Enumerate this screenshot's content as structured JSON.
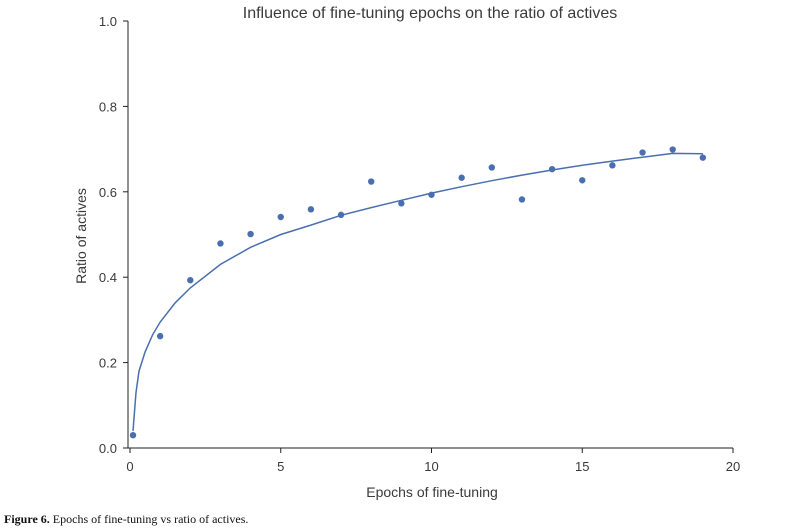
{
  "chart_data": {
    "type": "scatter",
    "title": "Influence of fine-tuning epochs on the ratio of actives",
    "xlabel": "Epochs of fine-tuning",
    "ylabel": "Ratio of actives",
    "xlim": [
      0,
      20
    ],
    "ylim": [
      0.0,
      1.0
    ],
    "xticks": [
      0,
      5,
      10,
      15,
      20
    ],
    "yticks": [
      0.0,
      0.2,
      0.4,
      0.6,
      0.8,
      1.0
    ],
    "xtick_labels": [
      "0",
      "5",
      "10",
      "15",
      "20"
    ],
    "ytick_labels": [
      "0.0",
      "0.2",
      "0.4",
      "0.6",
      "0.8",
      "1.0"
    ],
    "grid": false,
    "series": [
      {
        "type": "scatter",
        "x": [
          0.1,
          1,
          2,
          3,
          4,
          5,
          6,
          7,
          8,
          9,
          10,
          11,
          12,
          13,
          14,
          15,
          16,
          17,
          18,
          19
        ],
        "y": [
          0.03,
          0.262,
          0.393,
          0.479,
          0.501,
          0.541,
          0.559,
          0.546,
          0.624,
          0.573,
          0.593,
          0.633,
          0.657,
          0.582,
          0.653,
          0.627,
          0.662,
          0.692,
          0.699,
          0.68
        ]
      },
      {
        "type": "line",
        "x": [
          0.1,
          0.2,
          0.3,
          0.5,
          0.75,
          1,
          1.5,
          2,
          3,
          4,
          5,
          6,
          7,
          8,
          9,
          10,
          11,
          12,
          13,
          14,
          15,
          16,
          17,
          18,
          19
        ],
        "y": [
          0.04,
          0.13,
          0.18,
          0.225,
          0.265,
          0.295,
          0.34,
          0.375,
          0.43,
          0.47,
          0.5,
          0.522,
          0.545,
          0.563,
          0.58,
          0.597,
          0.612,
          0.626,
          0.639,
          0.651,
          0.662,
          0.672,
          0.681,
          0.69,
          0.689
        ]
      }
    ],
    "colors": {
      "points": "#4a6faf",
      "fit_line": "#4a6faf"
    }
  },
  "caption": {
    "label": "Figure 6.",
    "text": " Epochs of fine-tuning vs ratio of actives."
  }
}
